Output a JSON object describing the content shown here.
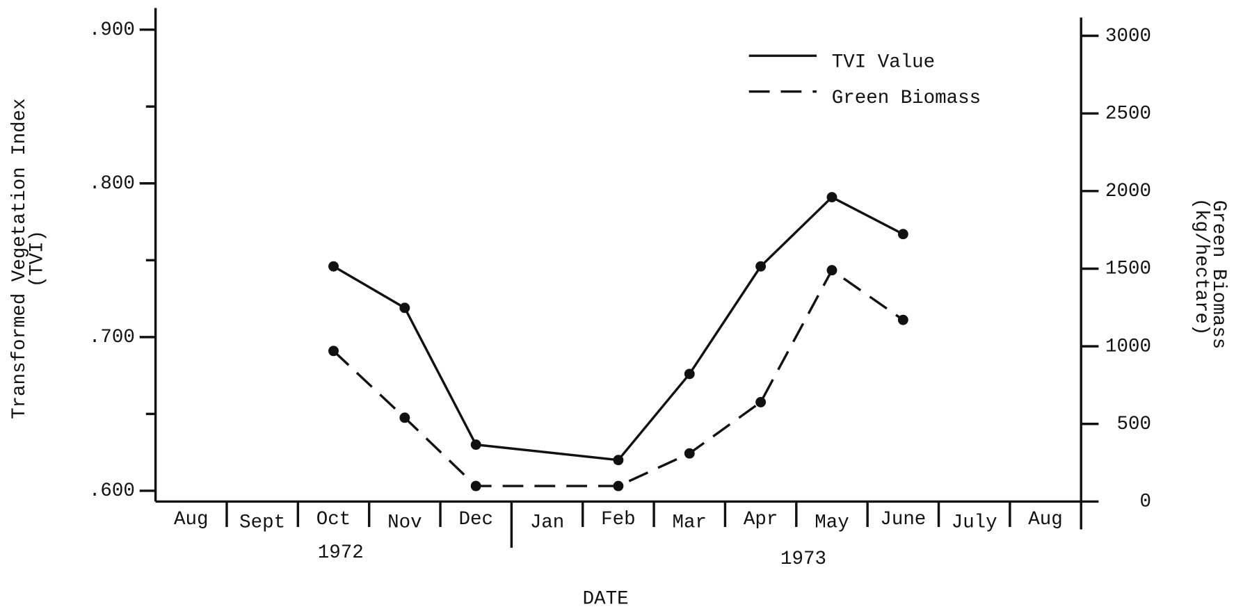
{
  "chart_data": {
    "type": "line",
    "y_label": "Transformed Vegetation Index",
    "y_label_sub": "(TVI)",
    "y2_label": "Green Biomass",
    "y2_label_sub": "(kg/hectare)",
    "x_label": "DATE",
    "categories": [
      "Aug",
      "Sept",
      "Oct",
      "Nov",
      "Dec",
      "Jan",
      "Feb",
      "Mar",
      "Apr",
      "May",
      "June",
      "July",
      "Aug"
    ],
    "years": [
      "1972",
      "1973"
    ],
    "ylim": [
      0.593,
      0.896
    ],
    "yticks": [
      {
        "value": 0.6,
        "label": ".600"
      },
      {
        "value": 0.7,
        "label": ".700"
      },
      {
        "value": 0.8,
        "label": ".800"
      },
      {
        "value": 0.9,
        "label": ".900"
      }
    ],
    "yminor_ticks": [
      0.65,
      0.75,
      0.85
    ],
    "y2lim": [
      0,
      3000
    ],
    "y2ticks": [
      0,
      500,
      1000,
      1500,
      2000,
      2500,
      3000
    ],
    "legend": "top-right",
    "series": [
      {
        "name": "TVI Value",
        "color": "#111111",
        "line_style": "solid",
        "axis": "y",
        "x": [
          "Oct",
          "Nov",
          "Dec",
          "Feb",
          "Mar",
          "Apr",
          "May",
          "June"
        ],
        "values": [
          0.746,
          0.719,
          0.63,
          0.62,
          0.676,
          0.746,
          0.791,
          0.767
        ]
      },
      {
        "name": "Green Biomass",
        "color": "#111111",
        "line_style": "dashed",
        "axis": "y2",
        "x": [
          "Oct",
          "Nov",
          "Dec",
          "Feb",
          "Mar",
          "Apr",
          "May",
          "June"
        ],
        "values": [
          970,
          540,
          100,
          100,
          310,
          640,
          1490,
          1170
        ]
      }
    ]
  }
}
